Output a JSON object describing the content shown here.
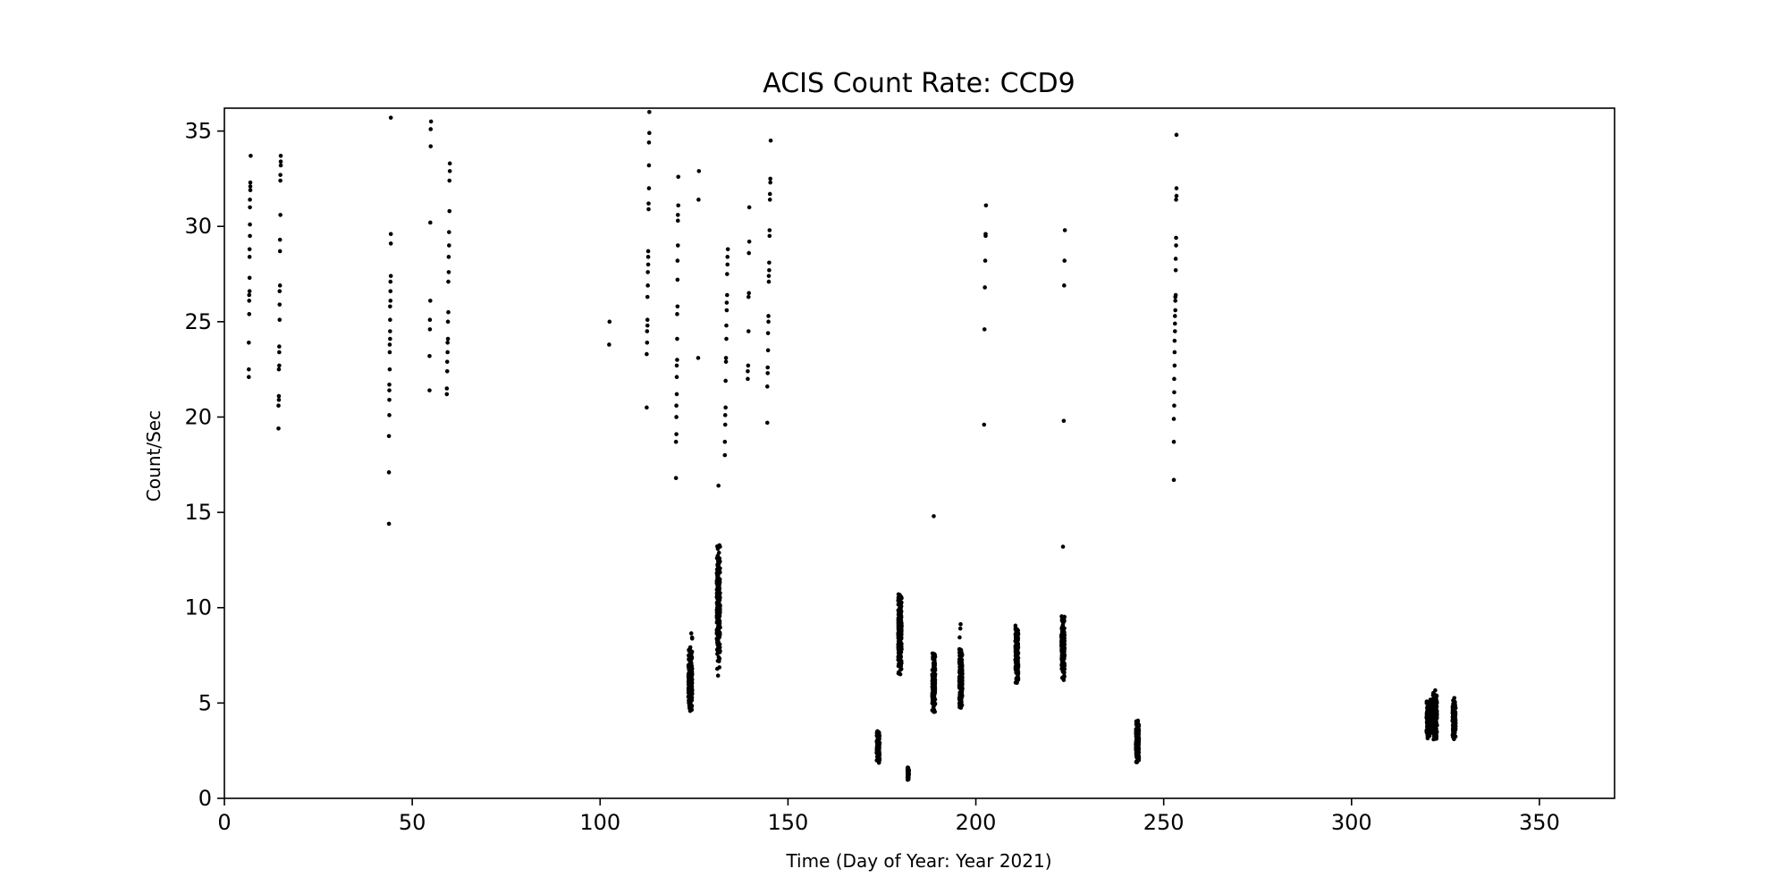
{
  "chart_data": {
    "type": "scatter",
    "title": "ACIS Count Rate: CCD9",
    "xlabel": "Time (Day of Year: Year 2021)",
    "ylabel": "Count/Sec",
    "xlim": [
      0,
      370
    ],
    "ylim": [
      0,
      36.2
    ],
    "xticks": [
      0,
      50,
      100,
      150,
      200,
      250,
      300,
      350
    ],
    "yticks": [
      0,
      5,
      10,
      15,
      20,
      25,
      30,
      35
    ],
    "grid": false,
    "marker_color": "#000000",
    "series": [
      {
        "points": [
          [
            6.5,
            22.1
          ],
          [
            6.5,
            22.5
          ],
          [
            6.5,
            23.9
          ],
          [
            6.6,
            25.4
          ],
          [
            6.6,
            26.1
          ],
          [
            6.6,
            26.4
          ],
          [
            6.7,
            26.6
          ],
          [
            6.7,
            27.3
          ],
          [
            6.7,
            28.4
          ],
          [
            6.7,
            28.8
          ],
          [
            6.8,
            29.5
          ],
          [
            6.8,
            30.1
          ],
          [
            6.8,
            31.0
          ],
          [
            6.8,
            31.4
          ],
          [
            6.9,
            31.9
          ],
          [
            6.9,
            32.1
          ],
          [
            6.9,
            32.3
          ],
          [
            7.0,
            33.7
          ],
          [
            14.4,
            19.4
          ],
          [
            14.4,
            20.6
          ],
          [
            14.5,
            20.9
          ],
          [
            14.5,
            21.1
          ],
          [
            14.5,
            22.5
          ],
          [
            14.6,
            22.7
          ],
          [
            14.6,
            23.4
          ],
          [
            14.6,
            23.7
          ],
          [
            14.7,
            25.1
          ],
          [
            14.7,
            25.9
          ],
          [
            14.7,
            26.6
          ],
          [
            14.8,
            26.9
          ],
          [
            14.8,
            28.7
          ],
          [
            14.8,
            29.3
          ],
          [
            14.9,
            30.6
          ],
          [
            14.9,
            32.4
          ],
          [
            14.9,
            32.7
          ],
          [
            15.0,
            33.2
          ],
          [
            15.0,
            33.4
          ],
          [
            15.0,
            33.7
          ],
          [
            43.8,
            14.4
          ],
          [
            43.8,
            17.1
          ],
          [
            43.8,
            19.0
          ],
          [
            43.9,
            20.1
          ],
          [
            43.9,
            20.9
          ],
          [
            43.9,
            21.4
          ],
          [
            43.9,
            21.7
          ],
          [
            44.0,
            22.5
          ],
          [
            44.0,
            23.4
          ],
          [
            44.0,
            23.8
          ],
          [
            44.1,
            24.1
          ],
          [
            44.1,
            24.5
          ],
          [
            44.1,
            25.1
          ],
          [
            44.1,
            25.8
          ],
          [
            44.2,
            26.1
          ],
          [
            44.2,
            26.6
          ],
          [
            44.2,
            27.1
          ],
          [
            44.3,
            27.4
          ],
          [
            44.3,
            29.1
          ],
          [
            44.3,
            29.6
          ],
          [
            44.3,
            35.7
          ],
          [
            54.6,
            21.4
          ],
          [
            54.6,
            23.2
          ],
          [
            54.7,
            24.6
          ],
          [
            54.7,
            25.1
          ],
          [
            54.8,
            26.1
          ],
          [
            54.8,
            30.2
          ],
          [
            54.9,
            34.2
          ],
          [
            54.9,
            35.1
          ],
          [
            55.0,
            35.5
          ],
          [
            59.2,
            21.2
          ],
          [
            59.2,
            21.5
          ],
          [
            59.3,
            22.4
          ],
          [
            59.3,
            22.9
          ],
          [
            59.4,
            23.4
          ],
          [
            59.4,
            23.9
          ],
          [
            59.5,
            24.1
          ],
          [
            59.5,
            25.0
          ],
          [
            59.6,
            25.5
          ],
          [
            59.6,
            27.1
          ],
          [
            59.7,
            27.6
          ],
          [
            59.7,
            28.4
          ],
          [
            59.8,
            29.0
          ],
          [
            59.8,
            29.7
          ],
          [
            59.9,
            30.8
          ],
          [
            59.9,
            32.4
          ],
          [
            60.0,
            32.9
          ],
          [
            60.0,
            33.3
          ],
          [
            102.4,
            23.8
          ],
          [
            102.5,
            25.0
          ],
          [
            112.4,
            20.5
          ],
          [
            112.4,
            23.3
          ],
          [
            112.5,
            23.9
          ],
          [
            112.5,
            24.5
          ],
          [
            112.6,
            24.8
          ],
          [
            112.6,
            25.1
          ],
          [
            112.6,
            26.3
          ],
          [
            112.7,
            26.9
          ],
          [
            112.7,
            27.6
          ],
          [
            112.8,
            28.0
          ],
          [
            112.8,
            28.4
          ],
          [
            112.8,
            28.7
          ],
          [
            112.9,
            30.9
          ],
          [
            112.9,
            31.2
          ],
          [
            113.0,
            32.0
          ],
          [
            113.0,
            33.2
          ],
          [
            113.0,
            34.4
          ],
          [
            113.1,
            34.9
          ],
          [
            113.1,
            36.0
          ],
          [
            120.2,
            16.8
          ],
          [
            120.2,
            18.7
          ],
          [
            120.3,
            19.1
          ],
          [
            120.3,
            20.0
          ],
          [
            120.3,
            20.6
          ],
          [
            120.4,
            21.2
          ],
          [
            120.4,
            22.1
          ],
          [
            120.4,
            22.7
          ],
          [
            120.5,
            23.0
          ],
          [
            120.5,
            24.1
          ],
          [
            120.5,
            25.4
          ],
          [
            120.6,
            25.8
          ],
          [
            120.6,
            27.2
          ],
          [
            120.6,
            28.2
          ],
          [
            120.7,
            29.0
          ],
          [
            120.7,
            30.3
          ],
          [
            120.7,
            30.6
          ],
          [
            120.8,
            31.1
          ],
          [
            120.8,
            32.6
          ],
          [
            126.1,
            23.1
          ],
          [
            126.2,
            31.4
          ],
          [
            126.3,
            32.9
          ],
          [
            131.5,
            16.4
          ],
          [
            133.2,
            18.0
          ],
          [
            133.2,
            18.7
          ],
          [
            133.3,
            19.6
          ],
          [
            133.3,
            20.1
          ],
          [
            133.4,
            20.5
          ],
          [
            133.4,
            21.9
          ],
          [
            133.5,
            22.9
          ],
          [
            133.5,
            23.1
          ],
          [
            133.6,
            24.1
          ],
          [
            133.6,
            24.8
          ],
          [
            133.7,
            25.6
          ],
          [
            133.7,
            26.0
          ],
          [
            133.8,
            26.4
          ],
          [
            133.8,
            27.5
          ],
          [
            133.9,
            28.0
          ],
          [
            133.9,
            28.4
          ],
          [
            134.0,
            28.8
          ],
          [
            139.3,
            22.0
          ],
          [
            139.3,
            22.4
          ],
          [
            139.4,
            22.7
          ],
          [
            139.5,
            24.5
          ],
          [
            139.5,
            26.3
          ],
          [
            139.6,
            26.5
          ],
          [
            139.6,
            28.6
          ],
          [
            139.7,
            29.2
          ],
          [
            139.7,
            31.0
          ],
          [
            144.5,
            19.7
          ],
          [
            144.5,
            21.6
          ],
          [
            144.6,
            22.3
          ],
          [
            144.6,
            22.6
          ],
          [
            144.7,
            23.5
          ],
          [
            144.7,
            24.4
          ],
          [
            144.8,
            25.0
          ],
          [
            144.8,
            25.3
          ],
          [
            144.9,
            27.1
          ],
          [
            144.9,
            27.4
          ],
          [
            145.0,
            27.7
          ],
          [
            145.0,
            28.1
          ],
          [
            145.1,
            29.5
          ],
          [
            145.1,
            29.8
          ],
          [
            145.2,
            31.4
          ],
          [
            145.2,
            31.7
          ],
          [
            145.3,
            32.3
          ],
          [
            145.3,
            32.5
          ],
          [
            145.4,
            34.5
          ],
          [
            188.8,
            14.8
          ],
          [
            202.2,
            19.6
          ],
          [
            202.3,
            24.6
          ],
          [
            202.4,
            26.8
          ],
          [
            202.5,
            28.2
          ],
          [
            202.6,
            29.5
          ],
          [
            202.6,
            29.6
          ],
          [
            202.7,
            31.1
          ],
          [
            223.2,
            13.2
          ],
          [
            223.4,
            19.8
          ],
          [
            223.5,
            26.9
          ],
          [
            223.6,
            28.2
          ],
          [
            223.7,
            29.8
          ],
          [
            252.7,
            16.7
          ],
          [
            252.7,
            18.7
          ],
          [
            252.7,
            19.9
          ],
          [
            252.8,
            20.6
          ],
          [
            252.8,
            21.3
          ],
          [
            252.8,
            22.0
          ],
          [
            252.9,
            22.7
          ],
          [
            252.9,
            23.4
          ],
          [
            252.9,
            24.0
          ],
          [
            253.0,
            24.5
          ],
          [
            253.0,
            24.9
          ],
          [
            253.0,
            25.3
          ],
          [
            253.1,
            25.6
          ],
          [
            253.1,
            26.1
          ],
          [
            253.1,
            26.3
          ],
          [
            253.2,
            26.4
          ],
          [
            253.2,
            27.7
          ],
          [
            253.2,
            28.3
          ],
          [
            253.3,
            29.0
          ],
          [
            253.3,
            29.4
          ],
          [
            253.3,
            31.4
          ],
          [
            253.4,
            31.6
          ],
          [
            253.4,
            32.0
          ],
          [
            253.4,
            34.8
          ]
        ],
        "clusters": [
          {
            "x": 124.0,
            "xspread": 1.0,
            "ymin": 4.3,
            "ymax": 8.0,
            "n": 240
          },
          {
            "x": 124.4,
            "xspread": 0.3,
            "ymin": 8.1,
            "ymax": 8.8,
            "n": 3
          },
          {
            "x": 131.5,
            "xspread": 0.9,
            "ymin": 6.4,
            "ymax": 13.5,
            "n": 220
          },
          {
            "x": 174.0,
            "xspread": 0.8,
            "ymin": 1.8,
            "ymax": 3.6,
            "n": 110
          },
          {
            "x": 179.8,
            "xspread": 0.9,
            "ymin": 6.4,
            "ymax": 11.0,
            "n": 230
          },
          {
            "x": 182.0,
            "xspread": 0.4,
            "ymin": 0.8,
            "ymax": 1.8,
            "n": 25
          },
          {
            "x": 188.8,
            "xspread": 0.8,
            "ymin": 4.4,
            "ymax": 7.9,
            "n": 170
          },
          {
            "x": 196.0,
            "xspread": 0.8,
            "ymin": 4.5,
            "ymax": 7.9,
            "n": 170
          },
          {
            "x": 195.8,
            "xspread": 0.3,
            "ymin": 8.4,
            "ymax": 9.4,
            "n": 3
          },
          {
            "x": 210.9,
            "xspread": 0.8,
            "ymin": 5.8,
            "ymax": 9.2,
            "n": 170
          },
          {
            "x": 223.2,
            "xspread": 0.8,
            "ymin": 6.1,
            "ymax": 9.8,
            "n": 200
          },
          {
            "x": 243.0,
            "xspread": 0.8,
            "ymin": 1.7,
            "ymax": 4.2,
            "n": 170
          },
          {
            "x": 320.5,
            "xspread": 1.1,
            "ymin": 3.1,
            "ymax": 5.2,
            "n": 160
          },
          {
            "x": 322.2,
            "xspread": 1.1,
            "ymin": 2.9,
            "ymax": 5.7,
            "n": 170
          },
          {
            "x": 327.3,
            "xspread": 0.8,
            "ymin": 3.0,
            "ymax": 5.3,
            "n": 150
          }
        ]
      }
    ]
  }
}
